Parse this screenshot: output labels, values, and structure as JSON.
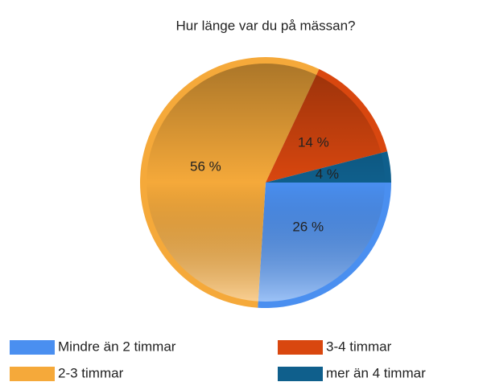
{
  "chart_data": {
    "type": "pie",
    "title": "Hur länge var du på mässan?",
    "categories": [
      "Mindre än 2 timmar",
      "2-3 timmar",
      "3-4 timmar",
      "mer än 4 timmar"
    ],
    "values": [
      26,
      56,
      14,
      4
    ],
    "value_labels": [
      "26 %",
      "56 %",
      "14 %",
      "4 %"
    ],
    "colors": [
      "#4a8ff0",
      "#f5a93a",
      "#d9470f",
      "#0f5f8c"
    ]
  }
}
